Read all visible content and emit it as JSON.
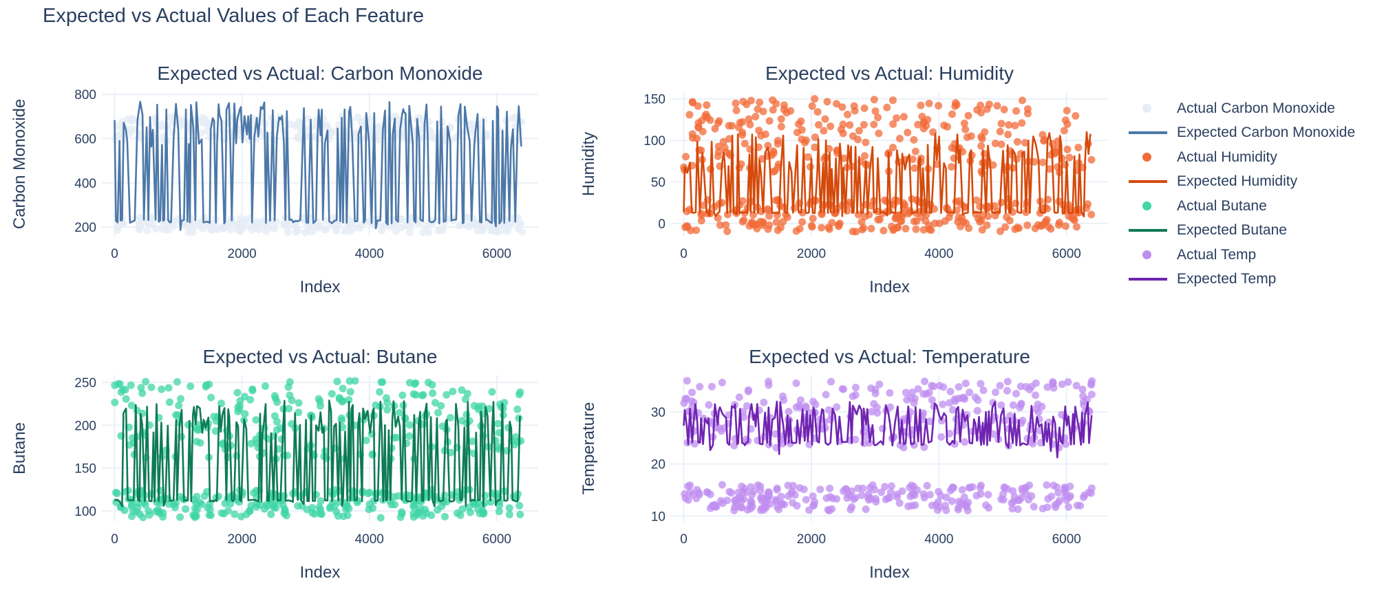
{
  "figure_title": "Expected vs Actual Values of Each Feature",
  "legend": [
    {
      "label": "Actual Carbon Monoxide",
      "kind": "marker",
      "color": "#e5ecf6"
    },
    {
      "label": "Expected Carbon Monoxide",
      "kind": "line",
      "color": "#4c78a8"
    },
    {
      "label": "Actual Humidity",
      "kind": "marker",
      "color": "#f26b38"
    },
    {
      "label": "Expected Humidity",
      "kind": "line",
      "color": "#d44a0b"
    },
    {
      "label": "Actual Butane",
      "kind": "marker",
      "color": "#3fd6a6"
    },
    {
      "label": "Expected Butane",
      "kind": "line",
      "color": "#0f7a56"
    },
    {
      "label": "Actual Temp",
      "kind": "marker",
      "color": "#bf8ef0"
    },
    {
      "label": "Expected Temp",
      "kind": "line",
      "color": "#6f24b0"
    }
  ],
  "chart_data": [
    {
      "type": "scatter",
      "title": "Expected vs Actual: Carbon Monoxide",
      "xlabel": "Index",
      "ylabel": "Carbon Monoxide",
      "xlim": [
        -200,
        6650
      ],
      "ylim": [
        160,
        810
      ],
      "xticks": [
        0,
        2000,
        4000,
        6000
      ],
      "xtick_labels": [
        "0",
        "2000",
        "4000",
        "6000"
      ],
      "yticks": [
        200,
        400,
        600,
        800
      ],
      "ytick_labels": [
        "200",
        "400",
        "600",
        "800"
      ],
      "grid": true,
      "n_points": 6400,
      "series": [
        {
          "name": "Actual Carbon Monoxide",
          "mode": "markers",
          "color": "#e5ecf6",
          "low_range": [
            175,
            245
          ],
          "high_range": [
            590,
            700
          ]
        },
        {
          "name": "Expected Carbon Monoxide",
          "mode": "lines",
          "color": "#4c78a8",
          "baseline": 225,
          "spike_range": [
            560,
            770
          ],
          "dip_min": 165
        }
      ]
    },
    {
      "type": "scatter",
      "title": "Expected vs Actual: Humidity",
      "xlabel": "Index",
      "ylabel": "Humidity",
      "xlim": [
        -200,
        6650
      ],
      "ylim": [
        -15,
        158
      ],
      "xticks": [
        0,
        2000,
        4000,
        6000
      ],
      "xtick_labels": [
        "0",
        "2000",
        "4000",
        "6000"
      ],
      "yticks": [
        0,
        50,
        100,
        150
      ],
      "ytick_labels": [
        "0",
        "50",
        "100",
        "150"
      ],
      "grid": true,
      "n_points": 6400,
      "series": [
        {
          "name": "Actual Humidity",
          "mode": "markers",
          "color": "#f26b38",
          "low_range": [
            -10,
            30
          ],
          "high_range": [
            60,
            150
          ]
        },
        {
          "name": "Expected Humidity",
          "mode": "lines",
          "color": "#d44a0b",
          "baseline": 13,
          "spike_range": [
            60,
            110
          ],
          "dip_min": 8
        }
      ]
    },
    {
      "type": "scatter",
      "title": "Expected vs Actual: Butane",
      "xlabel": "Index",
      "ylabel": "Butane",
      "xlim": [
        -200,
        6650
      ],
      "ylim": [
        88,
        258
      ],
      "xticks": [
        0,
        2000,
        4000,
        6000
      ],
      "xtick_labels": [
        "0",
        "2000",
        "4000",
        "6000"
      ],
      "yticks": [
        100,
        150,
        200,
        250
      ],
      "ytick_labels": [
        "100",
        "150",
        "200",
        "250"
      ],
      "grid": true,
      "n_points": 6400,
      "series": [
        {
          "name": "Actual Butane",
          "mode": "markers",
          "color": "#3fd6a6",
          "low_range": [
            92,
            125
          ],
          "high_range": [
            160,
            252
          ]
        },
        {
          "name": "Expected Butane",
          "mode": "lines",
          "color": "#0f7a56",
          "baseline": 112,
          "spike_range": [
            190,
            230
          ],
          "dip_min": 105
        }
      ]
    },
    {
      "type": "scatter",
      "title": "Expected vs Actual: Temperature",
      "xlabel": "Index",
      "ylabel": "Temperature",
      "xlim": [
        -200,
        6650
      ],
      "ylim": [
        9,
        37
      ],
      "xticks": [
        0,
        2000,
        4000,
        6000
      ],
      "xtick_labels": [
        "0",
        "2000",
        "4000",
        "6000"
      ],
      "yticks": [
        10,
        20,
        30
      ],
      "ytick_labels": [
        "10",
        "20",
        "30"
      ],
      "grid": true,
      "n_points": 6400,
      "series": [
        {
          "name": "Actual Temp",
          "mode": "markers",
          "color": "#bf8ef0",
          "low_range": [
            11,
            16
          ],
          "high_range": [
            23,
            36
          ]
        },
        {
          "name": "Expected Temp",
          "mode": "lines",
          "color": "#6f24b0",
          "baseline": 24,
          "spike_range": [
            27,
            32
          ],
          "dip_min": 21
        }
      ]
    }
  ]
}
